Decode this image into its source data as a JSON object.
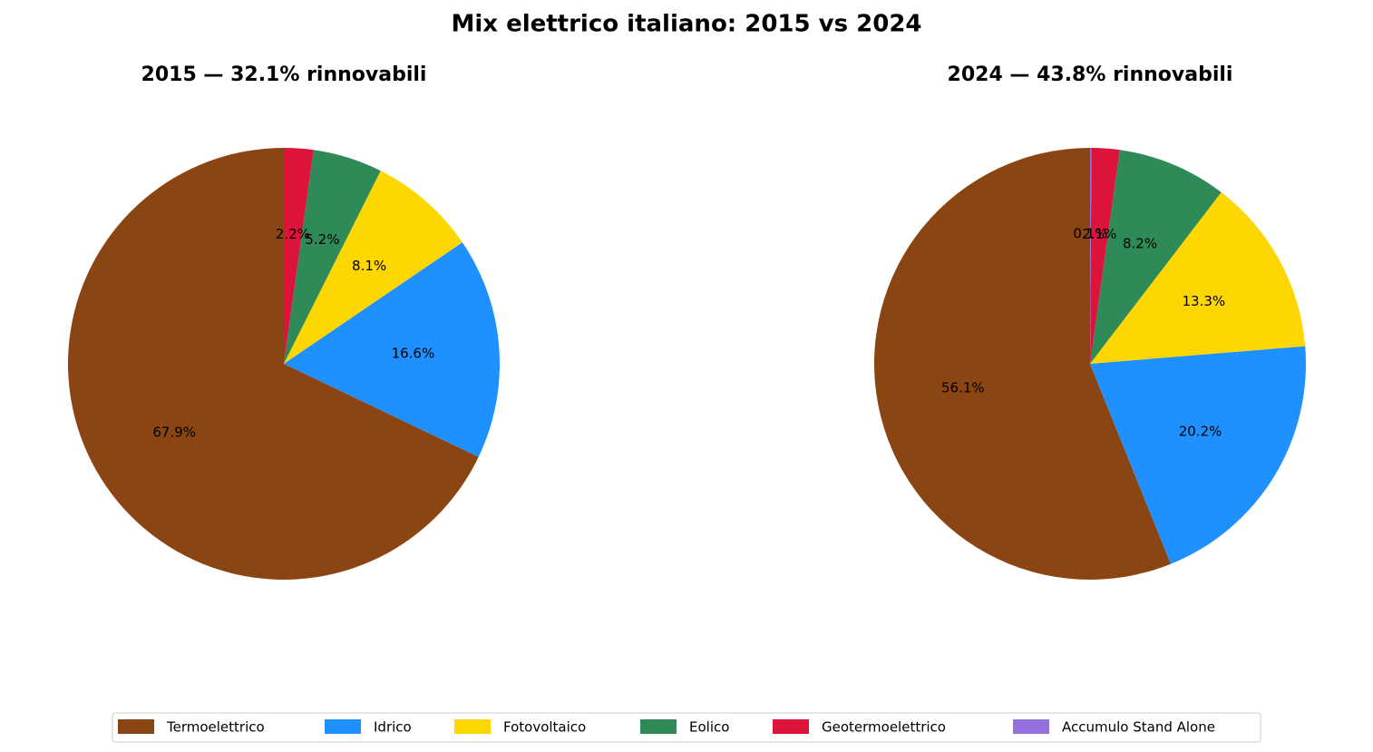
{
  "title": "Mix elettrico italiano: 2015 vs 2024",
  "chart_data": [
    {
      "type": "pie",
      "title": "2015 — 32.1% rinnovabili",
      "categories": [
        "Termoelettrico",
        "Idrico",
        "Fotovoltaico",
        "Eolico",
        "Geotermoelettrico"
      ],
      "values": [
        67.9,
        16.6,
        8.1,
        5.2,
        2.2
      ],
      "value_labels": [
        "67.9%",
        "16.6%",
        "8.1%",
        "5.2%",
        "2.2%"
      ],
      "colors": [
        "#8b4513",
        "#1e90ff",
        "#ffd700",
        "#2e8b57",
        "#dc143c"
      ]
    },
    {
      "type": "pie",
      "title": "2024 — 43.8% rinnovabili",
      "categories": [
        "Termoelettrico",
        "Idrico",
        "Fotovoltaico",
        "Eolico",
        "Geotermoelettrico",
        "Accumulo Stand Alone"
      ],
      "values": [
        56.1,
        20.2,
        13.3,
        8.2,
        2.1,
        0.1
      ],
      "value_labels": [
        "56.1%",
        "20.2%",
        "13.3%",
        "8.2%",
        "2.1%",
        "0.1%"
      ],
      "colors": [
        "#8b4513",
        "#1e90ff",
        "#ffd700",
        "#2e8b57",
        "#dc143c",
        "#9370db"
      ]
    }
  ]
}
